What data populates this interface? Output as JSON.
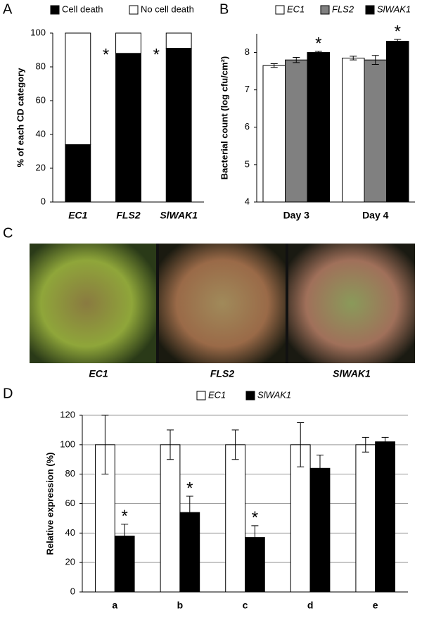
{
  "panel_labels": [
    "A",
    "B",
    "C",
    "D"
  ],
  "photo": {
    "labels": [
      "EC1",
      "FLS2",
      "SlWAK1"
    ]
  },
  "chart_data": [
    {
      "type": "stacked_bar",
      "ylabel": "% of each CD category",
      "categories": [
        "EC1",
        "FLS2",
        "SlWAK1"
      ],
      "series": [
        {
          "name": "Cell death",
          "color": "#000000",
          "values": [
            34,
            88,
            91
          ]
        },
        {
          "name": "No cell death",
          "color": "#ffffff",
          "values": [
            66,
            12,
            9
          ]
        }
      ],
      "significance": [
        null,
        "*",
        "*"
      ],
      "ylim": [
        0,
        100
      ],
      "yticks": [
        0,
        20,
        40,
        60,
        80,
        100
      ],
      "grid": false
    },
    {
      "type": "bar",
      "ylabel": "Bacterial count (log cfu/cm²)",
      "categories": [
        "Day 3",
        "Day 4"
      ],
      "series": [
        {
          "name": "EC1",
          "color": "#ffffff",
          "values": [
            7.65,
            7.85
          ],
          "errors": [
            0.05,
            0.05
          ],
          "significance": [
            null,
            null
          ]
        },
        {
          "name": "FLS2",
          "color": "#808080",
          "values": [
            7.8,
            7.8
          ],
          "errors": [
            0.07,
            0.12
          ],
          "significance": [
            null,
            null
          ]
        },
        {
          "name": "SlWAK1",
          "color": "#000000",
          "values": [
            8.0,
            8.3
          ],
          "errors": [
            0.03,
            0.05
          ],
          "significance": [
            "*",
            "*"
          ]
        }
      ],
      "ylim": [
        4,
        8.5
      ],
      "yticks": [
        4,
        5,
        6,
        7,
        8
      ],
      "grid": false
    },
    {
      "type": "bar",
      "ylabel": "Relative expression (%)",
      "categories": [
        "a",
        "b",
        "c",
        "d",
        "e"
      ],
      "series": [
        {
          "name": "EC1",
          "color": "#ffffff",
          "values": [
            100,
            100,
            100,
            100,
            100
          ],
          "errors": [
            20,
            10,
            10,
            15,
            5
          ],
          "significance": [
            null,
            null,
            null,
            null,
            null
          ]
        },
        {
          "name": "SlWAK1",
          "color": "#000000",
          "values": [
            38,
            54,
            37,
            84,
            102
          ],
          "errors": [
            8,
            11,
            8,
            9,
            3
          ],
          "significance": [
            "*",
            "*",
            "*",
            null,
            null
          ]
        }
      ],
      "ylim": [
        0,
        120
      ],
      "yticks": [
        0,
        20,
        40,
        60,
        80,
        100,
        120
      ],
      "grid": true
    }
  ]
}
